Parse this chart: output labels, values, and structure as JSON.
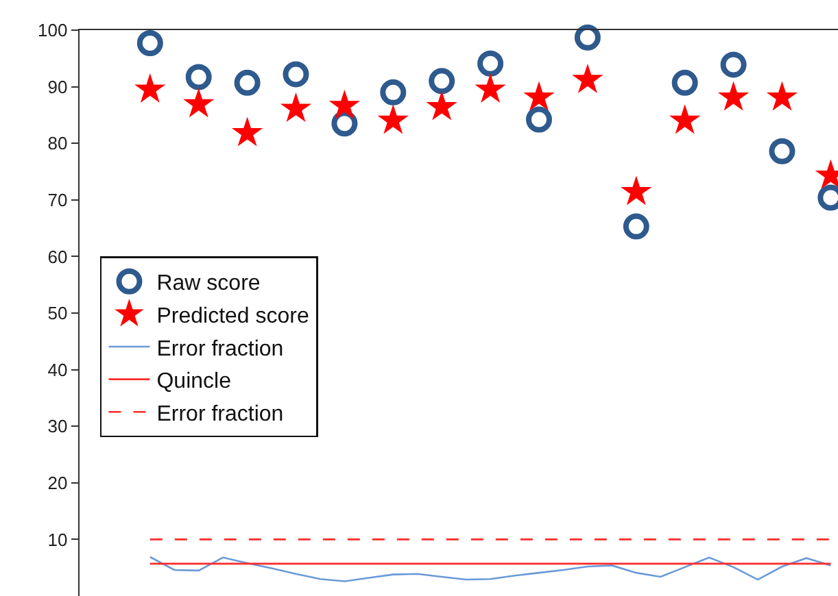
{
  "chart_data": {
    "type": "scatter",
    "categories": [
      null,
      null,
      null,
      null,
      null,
      null,
      null,
      null,
      null,
      null,
      null,
      null,
      null,
      null,
      null,
      null,
      null,
      null,
      null,
      null,
      null,
      null,
      null,
      null,
      null,
      null,
      null,
      null,
      null
    ],
    "ylim": [
      0,
      100
    ],
    "yticks": [
      10,
      20,
      30,
      40,
      50,
      60,
      70,
      80,
      90,
      100
    ],
    "tick_labels": "y",
    "grid": false,
    "legend": "bottom left",
    "series": [
      {
        "name": "Raw score",
        "type": "scatter",
        "marker": "circle",
        "color": "#2e5a8e",
        "values": [
          97.7,
          null,
          91.7,
          null,
          90.7,
          null,
          92.2,
          null,
          83.5,
          null,
          89.0,
          null,
          91.0,
          null,
          94.1,
          null,
          84.2,
          null,
          98.7,
          null,
          65.3,
          null,
          90.7,
          null,
          93.9,
          null,
          78.6,
          null,
          70.4
        ]
      },
      {
        "name": "Predicted score",
        "type": "scatter",
        "marker": "star",
        "color": "#ff0000",
        "values": [
          89.5,
          null,
          86.9,
          null,
          81.8,
          null,
          86.1,
          null,
          86.6,
          null,
          84.0,
          null,
          86.4,
          null,
          89.5,
          null,
          88.1,
          null,
          91.2,
          null,
          71.4,
          null,
          84.0,
          null,
          88.1,
          null,
          88.1,
          null,
          74.3
        ]
      },
      {
        "name": "Error fraction",
        "type": "line",
        "marker": "none",
        "line_style": "solid",
        "color": "#6a9ad8",
        "values": [
          6.9,
          4.6,
          4.5,
          6.8,
          5.8,
          4.9,
          3.9,
          3.0,
          2.6,
          3.2,
          3.8,
          3.9,
          3.4,
          2.9,
          3.0,
          3.6,
          4.1,
          4.6,
          5.2,
          5.4,
          4.1,
          3.4,
          5.1,
          6.8,
          5.1,
          2.9,
          5.2,
          6.7,
          5.4
        ]
      },
      {
        "name": "Quincle",
        "type": "line",
        "marker": "none",
        "line_style": "solid",
        "color": "#ff2a2a",
        "values": [
          5.7,
          5.7,
          5.7,
          5.7,
          5.7,
          5.7,
          5.7,
          5.7,
          5.7,
          5.7,
          5.7,
          5.7,
          5.7,
          5.7,
          5.7,
          5.7,
          5.7,
          5.7,
          5.7,
          5.7,
          5.7,
          5.7,
          5.7,
          5.7,
          5.7,
          5.7,
          5.7,
          5.7,
          5.7
        ]
      },
      {
        "name": "Error fraction",
        "type": "line",
        "marker": "none",
        "line_style": "dashed",
        "color": "#ff2a2a",
        "values": [
          10.0,
          10.0,
          10.0,
          10.0,
          10.0,
          10.0,
          10.0,
          10.0,
          10.0,
          10.0,
          10.0,
          10.0,
          10.0,
          10.0,
          10.0,
          10.0,
          10.0,
          10.0,
          10.0,
          10.0,
          10.0,
          10.0,
          10.0,
          10.0,
          10.0,
          10.0,
          10.0,
          10.0,
          10.0
        ]
      }
    ]
  }
}
